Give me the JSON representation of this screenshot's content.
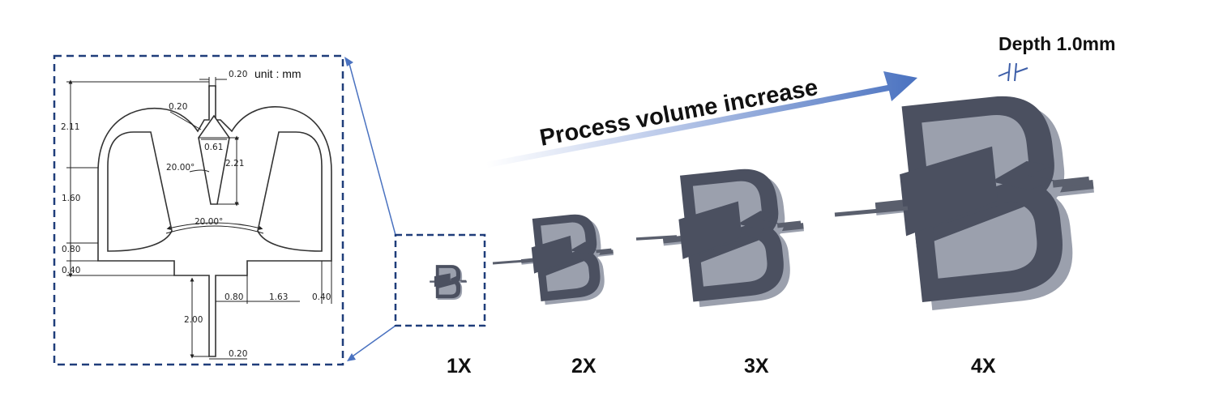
{
  "drawing": {
    "unit_label": "unit : mm",
    "dims": {
      "top_slot": "0.20",
      "height_total": "2.11",
      "notch_tip": "0.20",
      "notch_width": "0.61",
      "notch_angle": "20.00°",
      "notch_depth": "2.21",
      "side_height": "1.60",
      "bottom_angle": "20.00°",
      "base_height": "0.80",
      "base_gap": "0.40",
      "neck_width": "0.80",
      "arm_length": "1.63",
      "rim": "0.40",
      "stem_length": "2.00",
      "stem_width": "0.20"
    }
  },
  "arrow_label": "Process volume increase",
  "depth_label": "Depth 1.0mm",
  "scales": [
    "1X",
    "2X",
    "3X",
    "4X"
  ],
  "colors": {
    "frame": "#1f3d7a",
    "arrow": "#4a72c0",
    "part_top": "#4b5060",
    "part_side": "#9ba0ad"
  }
}
